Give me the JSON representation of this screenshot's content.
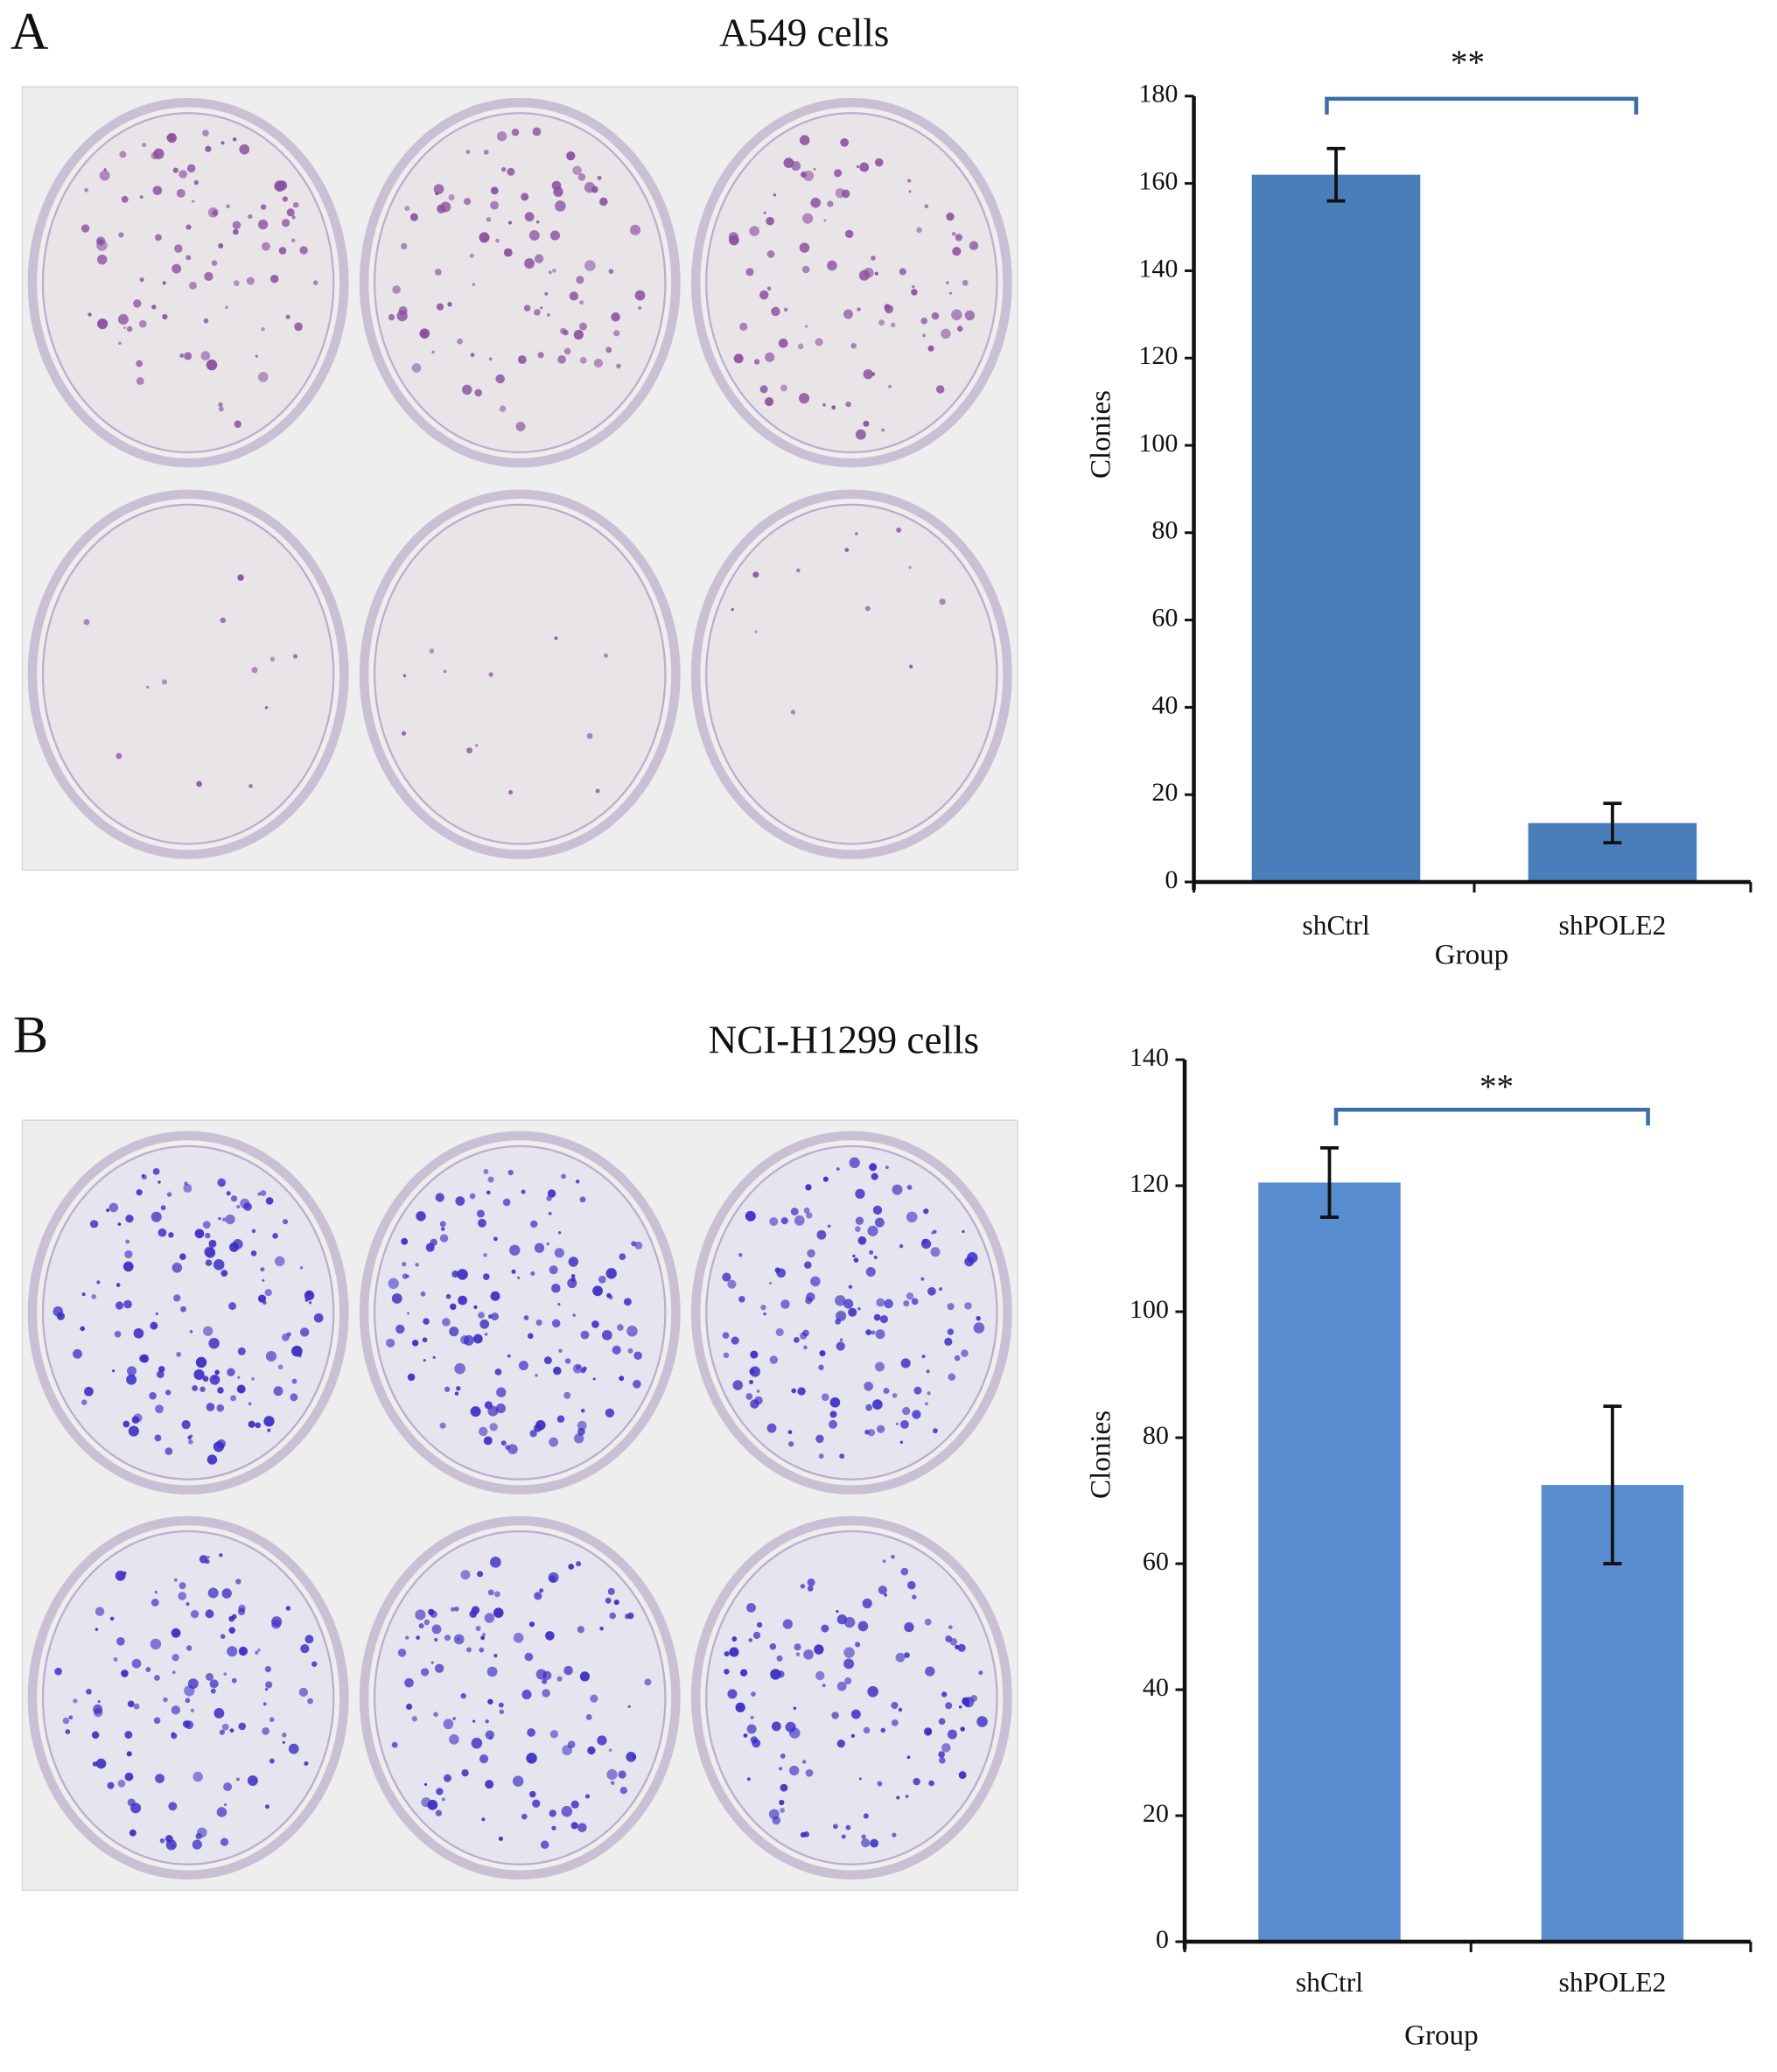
{
  "chart_data": [
    {
      "type": "bar",
      "panel_label": "A",
      "title": "A549 cells",
      "y_label": "Clonies",
      "x_label": "Group",
      "annotation": "**",
      "categories": [
        "shCtrl",
        "shPOLE2"
      ],
      "values": [
        162,
        13.5
      ],
      "errors": [
        6,
        4.5
      ],
      "color": "#4a7ebb",
      "ylim": [
        0,
        180
      ],
      "yticks": [
        0,
        20,
        40,
        60,
        80,
        100,
        120,
        140,
        160,
        180
      ],
      "grid": false
    },
    {
      "type": "bar",
      "panel_label": "B",
      "title": "NCI-H1299 cells",
      "y_label": "Clonies",
      "x_label": "Group",
      "annotation": "**",
      "categories": [
        "shCtrl",
        "shPOLE2"
      ],
      "values": [
        120.5,
        72.5
      ],
      "errors": [
        5.5,
        12.5
      ],
      "color": "#588dd0",
      "ylim": [
        0,
        140
      ],
      "yticks": [
        0,
        20,
        40,
        60,
        80,
        100,
        120,
        140
      ],
      "grid": false
    }
  ]
}
